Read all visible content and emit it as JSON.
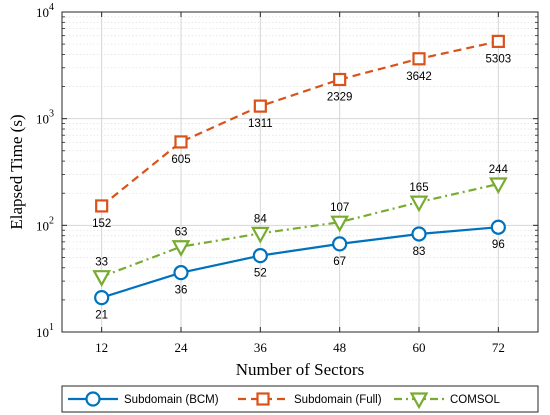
{
  "chart_data": {
    "type": "line",
    "xlabel": "Number of Sectors",
    "ylabel": "Elapsed Time (s)",
    "yscale": "log",
    "grid": true,
    "minor_grid": true,
    "legend_placement": "bottom",
    "x": [
      12,
      24,
      36,
      48,
      60,
      72
    ],
    "xlim": [
      6,
      78
    ],
    "ylim": [
      10,
      10000
    ],
    "x_tick_labels": [
      "12",
      "24",
      "36",
      "48",
      "60",
      "72"
    ],
    "y_tick_labels": [
      {
        "base": "10",
        "exp": "1",
        "value": 10
      },
      {
        "base": "10",
        "exp": "2",
        "value": 100
      },
      {
        "base": "10",
        "exp": "3",
        "value": 1000
      },
      {
        "base": "10",
        "exp": "4",
        "value": 10000
      }
    ],
    "series": [
      {
        "name": "Subdomain (BCM)",
        "values": [
          21,
          36,
          52,
          67,
          83,
          96
        ],
        "labels": [
          "21",
          "36",
          "52",
          "67",
          "83",
          "96"
        ],
        "label_position": "below",
        "color": "#0072BD",
        "marker": "circle",
        "line_style": "solid"
      },
      {
        "name": "Subdomain (Full)",
        "values": [
          152,
          605,
          1311,
          2329,
          3642,
          5303
        ],
        "labels": [
          "152",
          "605",
          "1311",
          "2329",
          "3642",
          "5303"
        ],
        "label_position": "below",
        "color": "#D95319",
        "marker": "square",
        "line_style": "dashed"
      },
      {
        "name": "COMSOL",
        "values": [
          33,
          63,
          84,
          107,
          165,
          244
        ],
        "labels": [
          "33",
          "63",
          "84",
          "107",
          "165",
          "244"
        ],
        "label_position": "above",
        "color": "#77AC30",
        "marker": "triangle-down",
        "line_style": "dashdot"
      }
    ]
  }
}
